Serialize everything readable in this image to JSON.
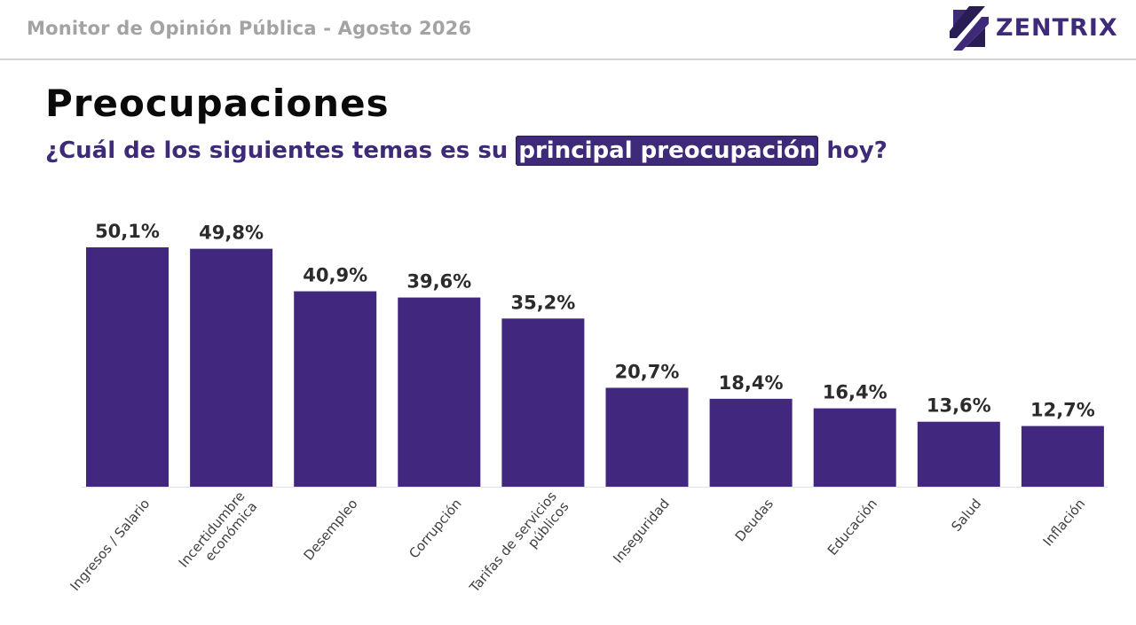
{
  "header": {
    "title": "Monitor de Opinión Pública - Agosto 2026",
    "logo_text": "ZENTRIX"
  },
  "title": "Preocupaciones",
  "subtitle": {
    "before": "¿Cuál de los siguientes temas es su ",
    "highlight": "principal preocupación",
    "after": " hoy?"
  },
  "colors": {
    "bar": "#41287e",
    "accent": "#3f2a7a"
  },
  "chart_data": {
    "type": "bar",
    "categories": [
      [
        "Ingresos / Salario"
      ],
      [
        "Incertidumbre",
        "económica"
      ],
      [
        "Desempleo"
      ],
      [
        "Corrupción"
      ],
      [
        "Tarifas de servicios",
        "públicos"
      ],
      [
        "Inseguridad"
      ],
      [
        "Deudas"
      ],
      [
        "Educación"
      ],
      [
        "Salud"
      ],
      [
        "Inflación"
      ]
    ],
    "values": [
      50.1,
      49.8,
      40.9,
      39.6,
      35.2,
      20.7,
      18.4,
      16.4,
      13.6,
      12.7
    ],
    "labels": [
      "50,1%",
      "49,8%",
      "40,9%",
      "39,6%",
      "35,2%",
      "20,7%",
      "18,4%",
      "16,4%",
      "13,6%",
      "12,7%"
    ],
    "ylim": [
      0,
      50.1
    ],
    "grid": false,
    "legend": "none"
  }
}
